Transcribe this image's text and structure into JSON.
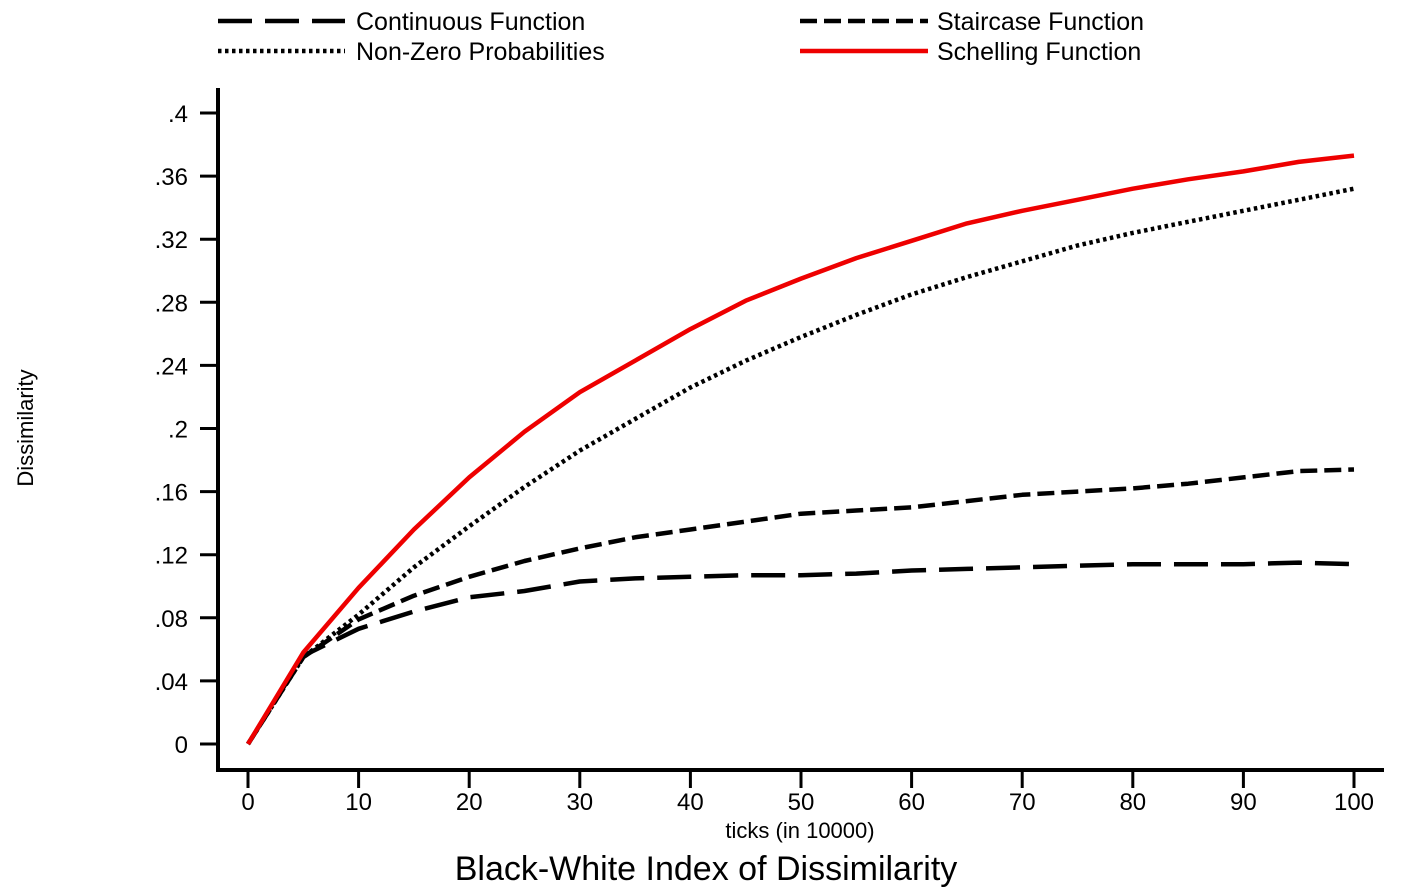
{
  "chart_data": {
    "type": "line",
    "title": "Black-White Index of Dissimilarity",
    "xlabel": "ticks (in 10000)",
    "ylabel": "Dissimilarity",
    "xlim": [
      0,
      100
    ],
    "ylim": [
      0,
      0.4
    ],
    "xticks": [
      0,
      10,
      20,
      30,
      40,
      50,
      60,
      70,
      80,
      90,
      100
    ],
    "xtick_labels": [
      "0",
      "10",
      "20",
      "30",
      "40",
      "50",
      "60",
      "70",
      "80",
      "90",
      "100"
    ],
    "yticks": [
      0,
      0.04,
      0.08,
      0.12,
      0.16,
      0.2,
      0.24,
      0.28,
      0.32,
      0.36,
      0.4
    ],
    "ytick_labels": [
      "0",
      ".04",
      ".08",
      ".12",
      ".16",
      ".2",
      ".24",
      ".28",
      ".32",
      ".36",
      ".4"
    ],
    "grid": false,
    "legend_position": "top",
    "x": [
      0,
      5,
      10,
      15,
      20,
      25,
      30,
      35,
      40,
      45,
      50,
      55,
      60,
      65,
      70,
      75,
      80,
      85,
      90,
      95,
      100
    ],
    "series": [
      {
        "name": "Continuous Function",
        "style": "long-dash",
        "color": "#000000",
        "values": [
          0,
          0.056,
          0.073,
          0.084,
          0.093,
          0.097,
          0.103,
          0.105,
          0.106,
          0.107,
          0.107,
          0.108,
          0.11,
          0.111,
          0.112,
          0.113,
          0.114,
          0.114,
          0.114,
          0.115,
          0.114
        ]
      },
      {
        "name": "Staircase Function",
        "style": "dash",
        "color": "#000000",
        "values": [
          0,
          0.055,
          0.079,
          0.094,
          0.106,
          0.116,
          0.124,
          0.131,
          0.136,
          0.141,
          0.146,
          0.148,
          0.15,
          0.154,
          0.158,
          0.16,
          0.162,
          0.165,
          0.169,
          0.173,
          0.174
        ]
      },
      {
        "name": "Non-Zero Probabilities",
        "style": "dot",
        "color": "#000000",
        "values": [
          0,
          0.055,
          0.082,
          0.112,
          0.138,
          0.163,
          0.186,
          0.206,
          0.226,
          0.243,
          0.258,
          0.272,
          0.285,
          0.296,
          0.306,
          0.316,
          0.324,
          0.331,
          0.338,
          0.345,
          0.352
        ]
      },
      {
        "name": "Schelling Function",
        "style": "solid",
        "color": "#ee0000",
        "values": [
          0,
          0.058,
          0.099,
          0.136,
          0.169,
          0.198,
          0.223,
          0.243,
          0.263,
          0.281,
          0.295,
          0.308,
          0.319,
          0.33,
          0.338,
          0.345,
          0.352,
          0.358,
          0.363,
          0.369,
          0.373
        ]
      }
    ]
  }
}
